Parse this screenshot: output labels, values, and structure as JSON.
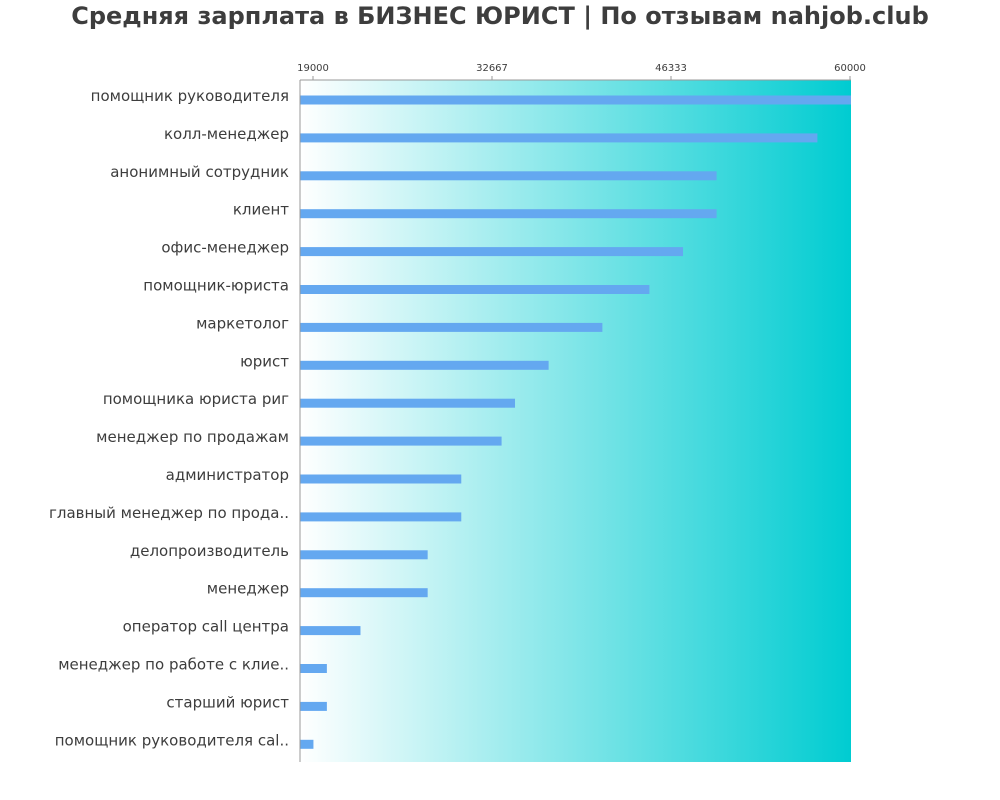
{
  "chart_data": {
    "type": "bar",
    "orientation": "horizontal",
    "title": "Средняя зарплата в БИЗНЕС ЮРИСТ | По отзывам nahjob.club",
    "xlim": [
      19000,
      60000
    ],
    "xticks": [
      "19000",
      "32667",
      "46333",
      "60000"
    ],
    "categories": [
      "помощник руководителя",
      "колл-менеджер",
      "анонимный сотрудник",
      "клиент",
      "офис-менеджер",
      "помощник-юриста",
      "маркетолог",
      "юрист",
      "помощника юриста риг",
      "менеджер по продажам",
      "администратор",
      "главный менеджер по прода..",
      "делопроизводитель",
      "менеджер",
      "оператор call центра",
      "менеджер по работе с клие..",
      "старший юрист",
      "помощник руководителя cal.."
    ],
    "values": [
      60000,
      57500,
      50000,
      50000,
      47500,
      45000,
      41500,
      37500,
      35000,
      34000,
      31000,
      31000,
      28500,
      28500,
      23500,
      21000,
      21000,
      20000
    ],
    "colors": {
      "bar": "#64a8f0",
      "gradient_start": "#ffffff",
      "gradient_end": "#00ccd1",
      "axis": "#999999",
      "text": "#3d3d3d"
    }
  }
}
